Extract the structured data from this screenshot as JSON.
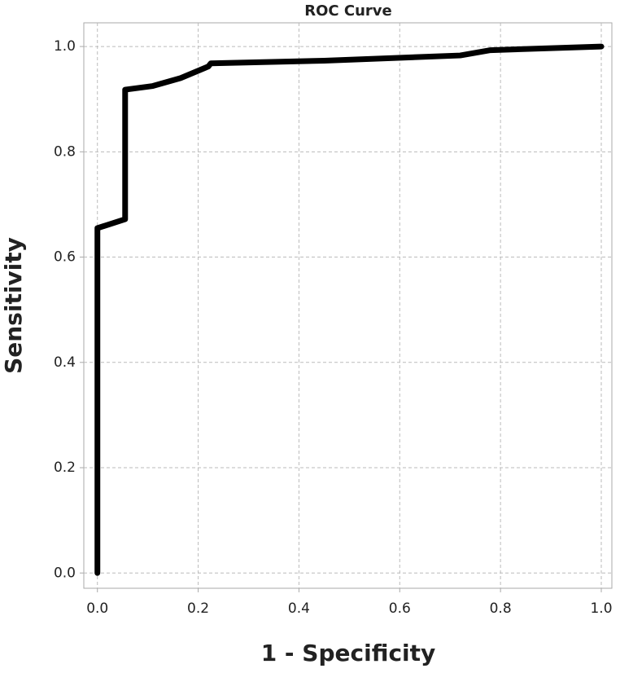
{
  "chart_data": {
    "type": "line",
    "title": "ROC Curve",
    "x_label": "1 - Specificity",
    "y_label": "Sensitivity",
    "x": [
      0,
      0,
      0.055,
      0.055,
      0.11,
      0.165,
      0.22,
      0.225,
      0.45,
      0.72,
      0.78,
      1
    ],
    "series": [
      {
        "name": "ROC",
        "color": "#000000",
        "values": [
          0,
          0.655,
          0.672,
          0.918,
          0.925,
          0.94,
          0.962,
          0.968,
          0.973,
          0.983,
          0.993,
          1
        ]
      }
    ],
    "xlim": [
      -0.027,
      1.021
    ],
    "ylim": [
      -0.029,
      1.045
    ],
    "xticks": [
      {
        "value": 0,
        "label": "0.0"
      },
      0.2,
      0.4,
      0.6,
      0.8,
      {
        "value": 1,
        "label": "1.0"
      }
    ],
    "yticks": [
      {
        "value": 0,
        "label": "0.0"
      },
      0.2,
      0.4,
      0.6,
      0.8,
      {
        "value": 1,
        "label": "1.0"
      }
    ],
    "grid": true
  }
}
